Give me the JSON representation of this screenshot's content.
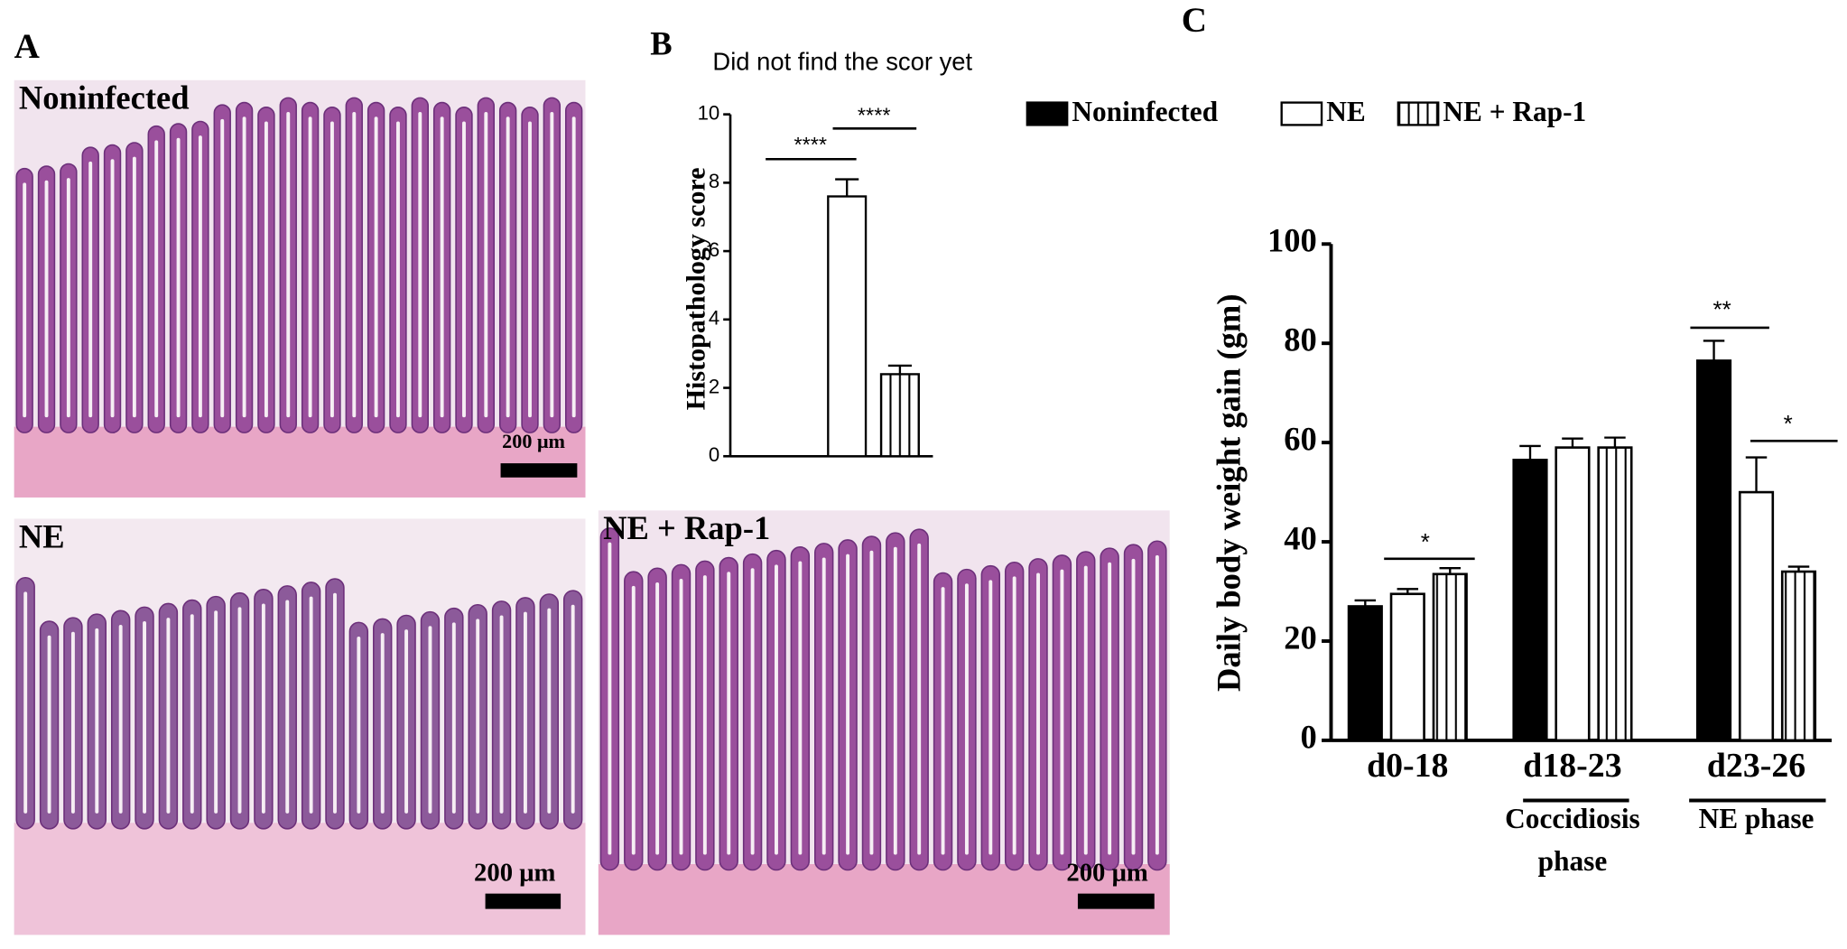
{
  "panel_a": {
    "label": "A",
    "images": [
      {
        "label": "Noninfected",
        "scale_bar": "200 μm"
      },
      {
        "label": "NE",
        "scale_bar": "200 μm"
      },
      {
        "label": "NE + Rap-1",
        "scale_bar": "200 μm"
      }
    ]
  },
  "chart_data": [
    {
      "type": "bar",
      "panel_label": "B",
      "title": "Did not find the scor yet",
      "y_label": "Histopathology score",
      "categories": [
        null,
        null,
        null
      ],
      "values": [
        0,
        7.6,
        2.4
      ],
      "errors": [
        0,
        0.5,
        0.25
      ],
      "colors": [
        "#000000",
        "#ffffff",
        "#ffffff"
      ],
      "hatch": [
        false,
        false,
        true
      ],
      "ylim": [
        0,
        10
      ],
      "yticks": [
        0,
        2,
        4,
        6,
        8,
        10
      ],
      "annotations": [
        "****",
        "****"
      ]
    },
    {
      "type": "grouped_bar",
      "panel_label": "C",
      "y_label": "Daily body weight gain (gm)",
      "categories": [
        "d0-18",
        "d18-23",
        "d23-26"
      ],
      "series": [
        {
          "name": "Noninfected",
          "color": "#000000",
          "hatch": false,
          "values": [
            27,
            56.5,
            76.5
          ],
          "errors": [
            1.2,
            2.8,
            4
          ]
        },
        {
          "name": "NE",
          "color": "#ffffff",
          "hatch": false,
          "values": [
            29.5,
            59,
            50
          ],
          "errors": [
            1,
            1.8,
            7
          ]
        },
        {
          "name": "NE + Rap-1",
          "color": "#ffffff",
          "hatch": true,
          "values": [
            33.5,
            59,
            34
          ],
          "errors": [
            1.2,
            2,
            1
          ]
        }
      ],
      "ylim": [
        0,
        100
      ],
      "yticks": [
        0,
        20,
        40,
        60,
        80,
        100
      ],
      "annotations": [
        "*",
        "**",
        "*"
      ],
      "phase_labels": [
        [
          "Coccidiosis",
          "phase"
        ],
        [
          "NE phase"
        ]
      ]
    }
  ]
}
